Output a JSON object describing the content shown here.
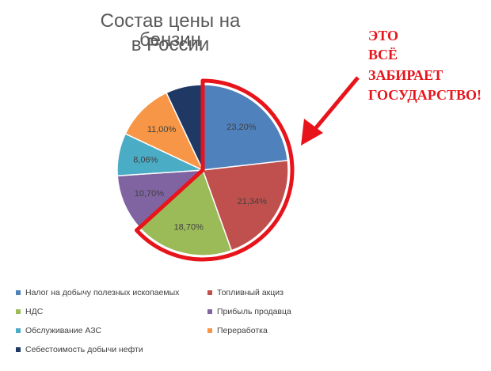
{
  "chart_data": {
    "type": "pie",
    "title": "Состав цены на бензин в России",
    "title_lines": [
      "Состав цены на бензин",
      "в России"
    ],
    "categories": [
      "Налог на добычу полезных ископаемых",
      "Топливный акциз",
      "НДС",
      "Прибыль продавца",
      "Обслуживание АЗС",
      "Переработка",
      "Себестоимость добычи нефти"
    ],
    "values": [
      23.2,
      21.34,
      18.7,
      10.7,
      8.06,
      11.0,
      7.0
    ],
    "value_labels": [
      "23,20%",
      "21,34%",
      "18,70%",
      "10,70%",
      "8,06%",
      "11,00%",
      ""
    ],
    "colors": [
      "#4f81bd",
      "#c0504d",
      "#9bbb59",
      "#8064a2",
      "#4bacc6",
      "#f79646",
      "#1f3864"
    ],
    "legend_position": "bottom",
    "highlighted_slices": [
      0,
      1,
      2
    ]
  },
  "annotation": {
    "lines": [
      "ЭТО",
      "ВСЁ",
      "ЗАБИРАЕТ",
      "ГОСУДАРСТВО!"
    ],
    "color": "#e8141b"
  }
}
